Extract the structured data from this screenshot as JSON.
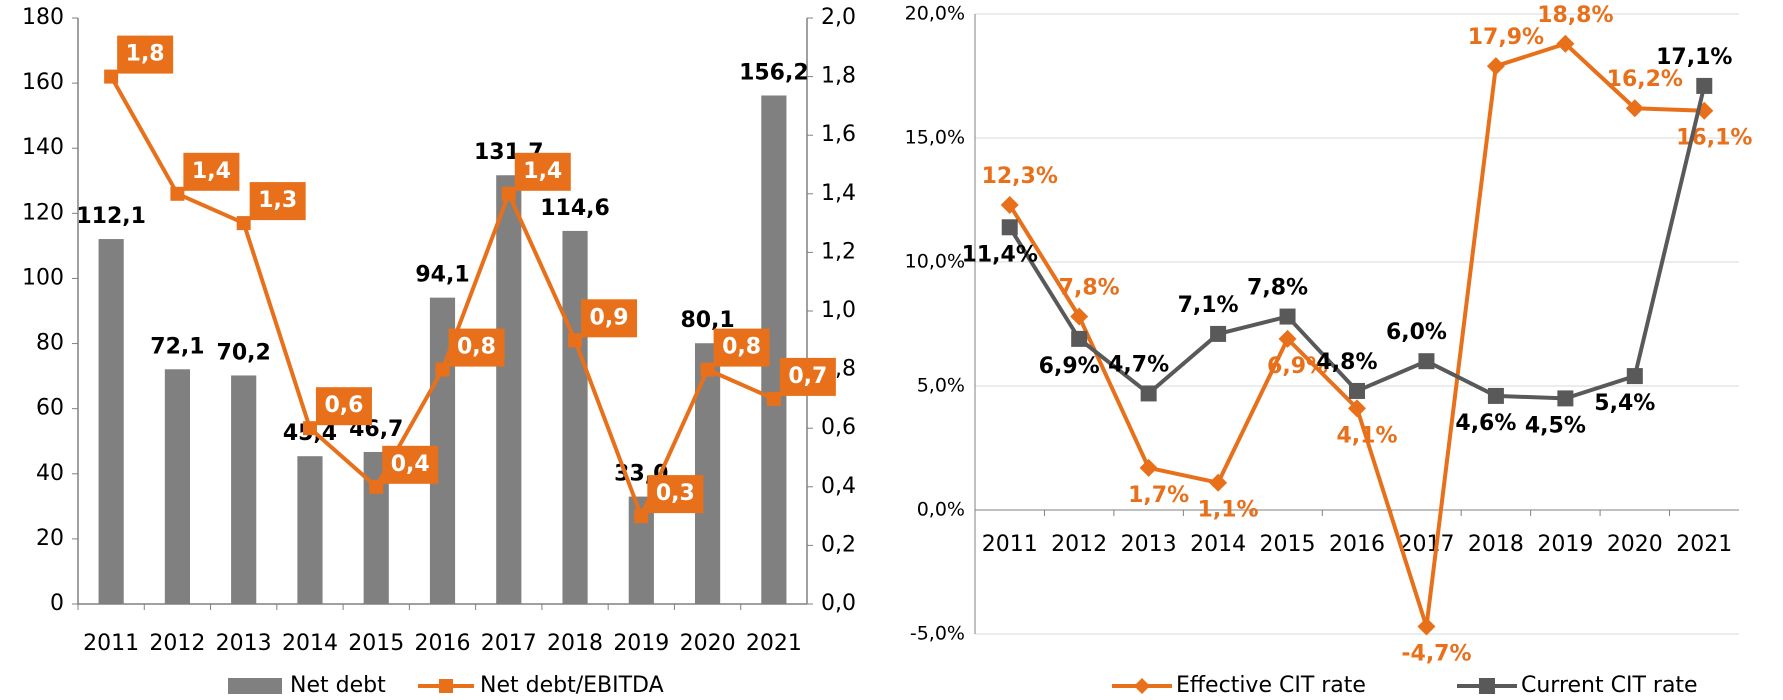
{
  "chart_data": [
    {
      "type": "bar",
      "categories": [
        "2011",
        "2012",
        "2013",
        "2014",
        "2015",
        "2016",
        "2017",
        "2018",
        "2019",
        "2020",
        "2021"
      ],
      "series": [
        {
          "name": "Net debt",
          "type": "bar",
          "color": "#808080",
          "values": [
            112.1,
            72.1,
            70.2,
            45.4,
            46.7,
            94.1,
            131.7,
            114.6,
            33.0,
            80.1,
            156.2
          ],
          "value_labels": [
            "112,1",
            "72,1",
            "70,2",
            "45,4",
            "46,7",
            "94,1",
            "131,7",
            "114,6",
            "33,0",
            "80,1",
            "156,2"
          ]
        },
        {
          "name": "Net debt/EBITDA",
          "type": "line",
          "axis": "y2",
          "color": "#E8701A",
          "values": [
            1.8,
            1.4,
            1.3,
            0.6,
            0.4,
            0.8,
            1.4,
            0.9,
            0.3,
            0.8,
            0.7
          ],
          "value_labels": [
            "1,8",
            "1,4",
            "1,3",
            "0,6",
            "0,4",
            "0,8",
            "1,4",
            "0,9",
            "0,3",
            "0,8",
            "0,7"
          ]
        }
      ],
      "ylim": [
        0,
        180
      ],
      "yticks": [
        0,
        20,
        40,
        60,
        80,
        100,
        120,
        140,
        160,
        180
      ],
      "y2lim": [
        0,
        2
      ],
      "y2ticks": [
        {
          "value": 0,
          "label": "0,0"
        },
        {
          "value": 0.2,
          "label": "0,2"
        },
        {
          "value": 0.4,
          "label": "0,4"
        },
        {
          "value": 0.6,
          "label": "0,6"
        },
        {
          "value": 0.8,
          "label": "0,8"
        },
        {
          "value": 1.0,
          "label": "1,0"
        },
        {
          "value": 1.2,
          "label": "1,2"
        },
        {
          "value": 1.4,
          "label": "1,4"
        },
        {
          "value": 1.6,
          "label": "1,6"
        },
        {
          "value": 1.8,
          "label": "1,8"
        },
        {
          "value": 2.0,
          "label": "2,0"
        }
      ],
      "grid": false
    },
    {
      "type": "line",
      "categories": [
        "2011",
        "2012",
        "2013",
        "2014",
        "2015",
        "2016",
        "2017",
        "2018",
        "2019",
        "2020",
        "2021"
      ],
      "series": [
        {
          "name": "Effective CIT rate",
          "marker": "diamond",
          "color": "#E8701A",
          "values": [
            12.3,
            7.8,
            1.7,
            1.1,
            6.9,
            4.1,
            -4.7,
            17.9,
            18.8,
            16.2,
            16.1
          ],
          "value_labels": [
            "12,3%",
            "7,8%",
            "1,7%",
            "1,1%",
            "6,9%",
            "4,1%",
            "-4,7%",
            "17,9%",
            "18,8%",
            "16,2%",
            "16,1%"
          ]
        },
        {
          "name": "Current CIT rate",
          "marker": "square",
          "color": "#595959",
          "values": [
            11.4,
            6.9,
            4.7,
            7.1,
            7.8,
            4.8,
            6.0,
            4.6,
            4.5,
            5.4,
            17.1
          ],
          "value_labels": [
            "11,4%",
            "6,9%",
            "4,7%",
            "7,1%",
            "7,8%",
            "4,8%",
            "6,0%",
            "4,6%",
            "4,5%",
            "5,4%",
            "17,1%"
          ]
        }
      ],
      "ylim": [
        -5,
        20
      ],
      "yticks": [
        {
          "value": -5,
          "label": "-5,0%"
        },
        {
          "value": 0,
          "label": "0,0%"
        },
        {
          "value": 5,
          "label": "5,0%"
        },
        {
          "value": 10,
          "label": "10,0%"
        },
        {
          "value": 15,
          "label": "15,0%"
        },
        {
          "value": 20,
          "label": "20,0%"
        }
      ],
      "grid": true
    }
  ]
}
